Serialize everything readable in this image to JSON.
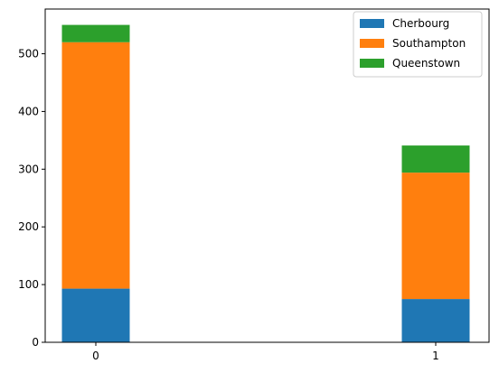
{
  "chart_data": {
    "type": "bar",
    "stacked": true,
    "categories": [
      "0",
      "1"
    ],
    "series": [
      {
        "name": "Cherbourg",
        "values": [
          93,
          75
        ],
        "color": "#1f77b4"
      },
      {
        "name": "Southampton",
        "values": [
          427,
          219
        ],
        "color": "#ff7f0e"
      },
      {
        "name": "Queenstown",
        "values": [
          30,
          47
        ],
        "color": "#2ca02c"
      }
    ],
    "yticks": [
      0,
      100,
      200,
      300,
      400,
      500
    ],
    "ylim": [
      0,
      577.5
    ],
    "title": "",
    "xlabel": "",
    "ylabel": "",
    "grid": false,
    "legend_position": "top-right"
  }
}
